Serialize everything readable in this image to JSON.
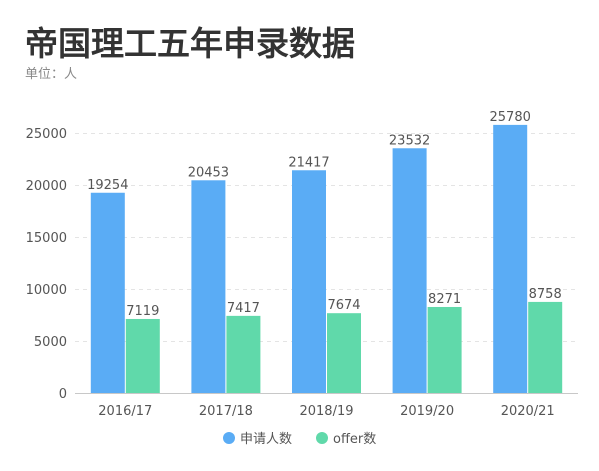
{
  "chart_data": {
    "type": "bar",
    "title": "帝国理工五年申录数据",
    "subtitle": "单位：人",
    "categories": [
      "2016/17",
      "2017/18",
      "2018/19",
      "2019/20",
      "2020/21"
    ],
    "series": [
      {
        "name": "申请人数",
        "values": [
          19254,
          20453,
          21417,
          23532,
          25780
        ],
        "color": "#5aacf5"
      },
      {
        "name": "offer数",
        "values": [
          7119,
          7417,
          7674,
          8271,
          8758
        ],
        "color": "#60d9aa"
      }
    ],
    "ylim": [
      0,
      25000
    ],
    "yticks": [
      0,
      5000,
      10000,
      15000,
      20000,
      25000
    ],
    "grid": true,
    "data_labels": true,
    "legend_position": "bottom"
  }
}
